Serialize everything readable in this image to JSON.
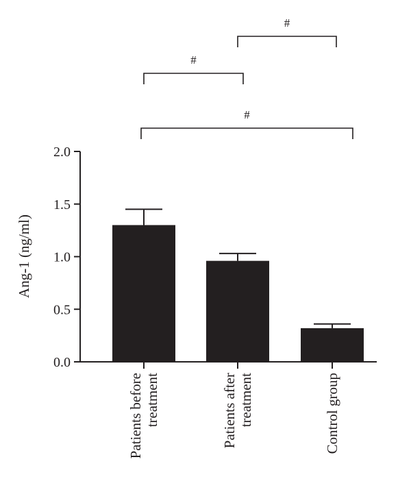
{
  "chart_data": {
    "type": "bar",
    "title": "",
    "xlabel": "",
    "ylabel": "Ang-1 (ng/ml)",
    "ylim": [
      0,
      2.0
    ],
    "yticks": [
      "0.0",
      "0.5",
      "1.0",
      "1.5",
      "2.0"
    ],
    "categories": [
      [
        "Patients before",
        "treatment"
      ],
      [
        "Patients after",
        "treatment"
      ],
      [
        "Control group"
      ]
    ],
    "values": [
      1.3,
      0.96,
      0.32
    ],
    "error_upper": [
      0.15,
      0.07,
      0.04
    ],
    "bar_color": "#231f20",
    "grid": false,
    "legend": "none",
    "significance": [
      {
        "from": 1,
        "to": 2,
        "label": "#"
      },
      {
        "from": 0,
        "to": 1,
        "label": "#"
      },
      {
        "from": 0,
        "to": 2,
        "label": "#"
      }
    ]
  }
}
